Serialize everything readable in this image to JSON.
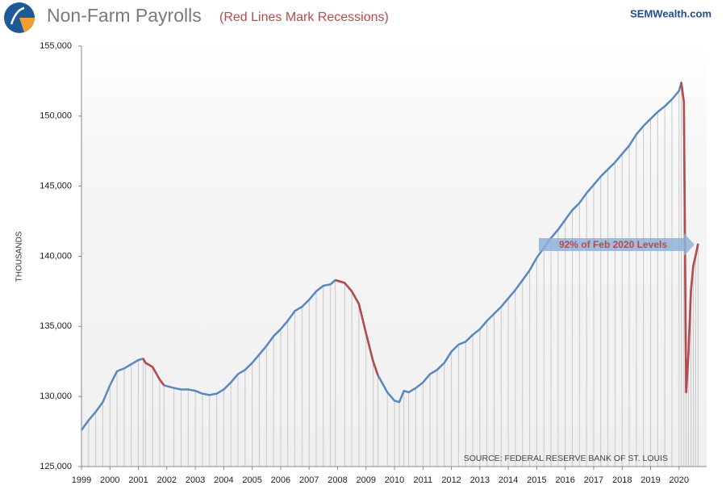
{
  "chart_data": {
    "type": "line",
    "title": "Non-Farm Payrolls",
    "subtitle": "(Red Lines Mark Recessions)",
    "brand": "SEMWealth.com",
    "y_label": "THOUSANDS",
    "source": "SOURCE: FEDERAL RESERVE BANK OF ST. LOUIS",
    "annotation": "92% of Feb 2020 Levels",
    "color": "#5b86bf",
    "recession_color": "#b84a4a",
    "recessions": [
      [
        2001.17,
        2001.9
      ],
      [
        2007.92,
        2009.42
      ],
      [
        2020.08,
        2020.67
      ]
    ],
    "x": [
      1999.0,
      1999.25,
      1999.5,
      1999.75,
      2000.0,
      2000.25,
      2000.5,
      2000.75,
      2001.0,
      2001.17,
      2001.25,
      2001.5,
      2001.75,
      2001.9,
      2002.25,
      2002.5,
      2002.75,
      2003.0,
      2003.25,
      2003.5,
      2003.75,
      2004.0,
      2004.25,
      2004.5,
      2004.75,
      2005.0,
      2005.25,
      2005.5,
      2005.75,
      2006.0,
      2006.25,
      2006.5,
      2006.75,
      2007.0,
      2007.25,
      2007.5,
      2007.75,
      2007.92,
      2008.25,
      2008.5,
      2008.75,
      2009.0,
      2009.25,
      2009.42,
      2009.75,
      2010.0,
      2010.17,
      2010.33,
      2010.5,
      2010.75,
      2011.0,
      2011.25,
      2011.5,
      2011.75,
      2012.0,
      2012.25,
      2012.5,
      2012.75,
      2013.0,
      2013.25,
      2013.5,
      2013.75,
      2014.0,
      2014.25,
      2014.5,
      2014.75,
      2015.0,
      2015.25,
      2015.5,
      2015.75,
      2016.0,
      2016.25,
      2016.5,
      2016.75,
      2017.0,
      2017.25,
      2017.5,
      2017.75,
      2018.0,
      2018.25,
      2018.5,
      2018.75,
      2019.0,
      2019.25,
      2019.5,
      2019.75,
      2020.0,
      2020.08,
      2020.17,
      2020.25,
      2020.33,
      2020.42,
      2020.5,
      2020.58,
      2020.67
    ],
    "values": [
      127600,
      128300,
      128900,
      129600,
      130800,
      131800,
      132000,
      132300,
      132600,
      132700,
      132400,
      132100,
      131200,
      130800,
      130600,
      130500,
      130500,
      130400,
      130200,
      130100,
      130200,
      130500,
      131000,
      131600,
      131900,
      132400,
      133000,
      133600,
      134300,
      134800,
      135400,
      136100,
      136400,
      136900,
      137500,
      137900,
      138000,
      138300,
      138100,
      137500,
      136600,
      134500,
      132500,
      131500,
      130300,
      129700,
      129600,
      130400,
      130300,
      130600,
      131000,
      131600,
      131900,
      132400,
      133200,
      133700,
      133900,
      134400,
      134800,
      135400,
      135900,
      136400,
      137000,
      137600,
      138300,
      139000,
      139900,
      140600,
      141300,
      141900,
      142600,
      143300,
      143800,
      144500,
      145100,
      145700,
      146200,
      146700,
      147300,
      147900,
      148700,
      149300,
      149800,
      150300,
      150700,
      151200,
      151800,
      152400,
      151000,
      130300,
      133000,
      137600,
      139300,
      140000,
      140900
    ],
    "xlim": [
      1999,
      2020.97
    ],
    "xticks": [
      1999,
      2000,
      2001,
      2002,
      2003,
      2004,
      2005,
      2006,
      2007,
      2008,
      2009,
      2010,
      2011,
      2012,
      2013,
      2014,
      2015,
      2016,
      2017,
      2018,
      2019,
      2020
    ],
    "ylim": [
      125000,
      155000
    ],
    "yticks": [
      {
        "value": 125000,
        "label": "125,000"
      },
      {
        "value": 130000,
        "label": "130,000"
      },
      {
        "value": 135000,
        "label": "135,000"
      },
      {
        "value": 140000,
        "label": "140,000"
      },
      {
        "value": 145000,
        "label": "145,000"
      },
      {
        "value": 150000,
        "label": "150,000"
      },
      {
        "value": 155000,
        "label": "155,000"
      }
    ]
  }
}
